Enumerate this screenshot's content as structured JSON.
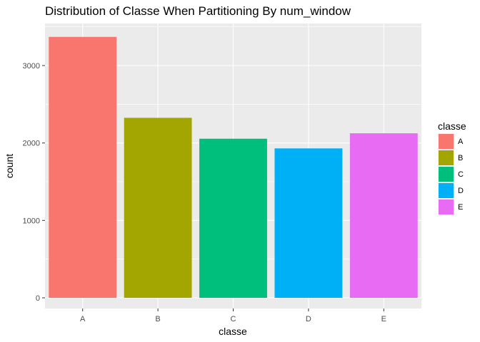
{
  "chart_data": {
    "type": "bar",
    "title": "Distribution of Classe When Partitioning By num_window",
    "xlabel": "classe",
    "ylabel": "count",
    "categories": [
      "A",
      "B",
      "C",
      "D",
      "E"
    ],
    "values": [
      3370,
      2325,
      2055,
      1930,
      2125
    ],
    "colors": [
      "#F8766D",
      "#A3A500",
      "#00BF7D",
      "#00B0F6",
      "#E76BF3"
    ],
    "ylim": [
      0,
      3500
    ],
    "yticks": [
      0,
      1000,
      2000,
      3000
    ],
    "grid": true,
    "legend": {
      "title": "classe",
      "position": "right",
      "entries": [
        "A",
        "B",
        "C",
        "D",
        "E"
      ]
    }
  }
}
